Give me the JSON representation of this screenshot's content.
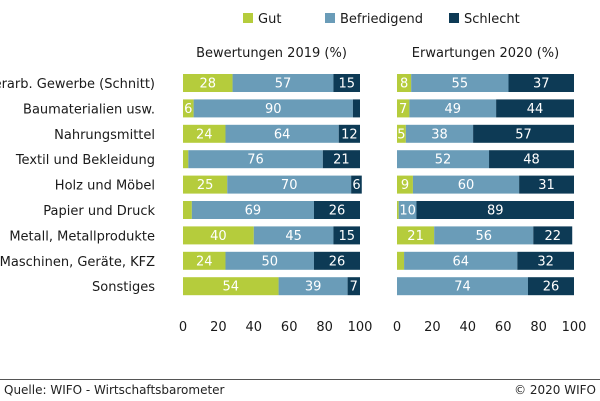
{
  "chart_data": {
    "type": "bar",
    "stacked": true,
    "orientation": "horizontal",
    "legend": {
      "position": "top",
      "items": [
        {
          "name": "Gut",
          "color": "#b5cc3c"
        },
        {
          "name": "Befriedigend",
          "color": "#6a9cb8"
        },
        {
          "name": "Schlecht",
          "color": "#0d3a55"
        }
      ]
    },
    "categories": [
      "Verarb. Gewerbe (Schnitt)",
      "Baumaterialien usw.",
      "Nahrungsmittel",
      "Textil und Bekleidung",
      "Holz und Möbel",
      "Papier und Druck",
      "Metall, Metallprodukte",
      "Maschinen, Geräte, KFZ",
      "Sonstiges"
    ],
    "panels": [
      {
        "title": "Bewertungen 2019 (%)",
        "xlim": [
          0,
          100
        ],
        "xticks": [
          "0",
          "20",
          "40",
          "60",
          "80",
          "100"
        ],
        "series": [
          {
            "name": "Gut",
            "values": [
              28,
              6,
              24,
              3,
              25,
              5,
              40,
              24,
              54
            ],
            "labels": [
              "28",
              "6",
              "24",
              "",
              "25",
              "",
              "40",
              "24",
              "54"
            ]
          },
          {
            "name": "Befriedigend",
            "values": [
              57,
              90,
              64,
              76,
              70,
              69,
              45,
              50,
              39
            ],
            "labels": [
              "57",
              "90",
              "64",
              "76",
              "70",
              "69",
              "45",
              "50",
              "39"
            ]
          },
          {
            "name": "Schlecht",
            "values": [
              15,
              4,
              12,
              21,
              6,
              26,
              15,
              26,
              7
            ],
            "labels": [
              "15",
              "",
              "12",
              "21",
              "6",
              "26",
              "15",
              "26",
              "7"
            ]
          }
        ]
      },
      {
        "title": "Erwartungen 2020 (%)",
        "xlim": [
          0,
          100
        ],
        "xticks": [
          "0",
          "20",
          "40",
          "60",
          "80",
          "100"
        ],
        "series": [
          {
            "name": "Gut",
            "values": [
              8,
              7,
              5,
              0,
              9,
              1,
              21,
              4,
              0
            ],
            "labels": [
              "8",
              "7",
              "5",
              "",
              "9",
              "",
              "21",
              "",
              ""
            ]
          },
          {
            "name": "Befriedigend",
            "values": [
              55,
              49,
              38,
              52,
              60,
              10,
              56,
              64,
              74
            ],
            "labels": [
              "55",
              "49",
              "38",
              "52",
              "60",
              "10",
              "56",
              "64",
              "74"
            ]
          },
          {
            "name": "Schlecht",
            "values": [
              37,
              44,
              57,
              48,
              31,
              89,
              22,
              32,
              26
            ],
            "labels": [
              "37",
              "44",
              "57",
              "48",
              "31",
              "89",
              "22",
              "32",
              "26"
            ]
          }
        ]
      }
    ]
  },
  "footer": {
    "source": "Quelle: WIFO - Wirtschaftsbarometer",
    "copyright": "© 2020 WIFO"
  }
}
